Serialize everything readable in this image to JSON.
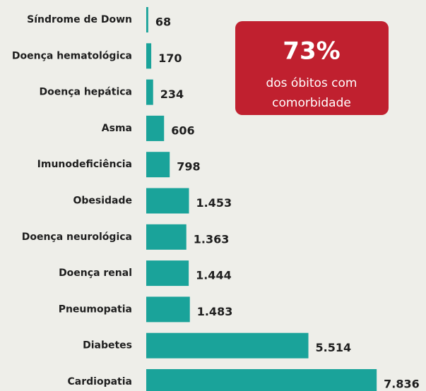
{
  "chart_data": {
    "type": "bar",
    "orientation": "horizontal",
    "categories": [
      "Síndrome de Down",
      "Doença hematológica",
      "Doença hepática",
      "Asma",
      "Imunodeficiência",
      "Obesidade",
      "Doença neurológica",
      "Doença renal",
      "Pneumopatia",
      "Diabetes",
      "Cardiopatia"
    ],
    "values": [
      68,
      170,
      234,
      606,
      798,
      1453,
      1363,
      1444,
      1483,
      5514,
      7836
    ],
    "value_labels": [
      "68",
      "170",
      "234",
      "606",
      "798",
      "1.453",
      "1.363",
      "1.444",
      "1.483",
      "5.514",
      "7.836"
    ],
    "color": "#1aa39a",
    "xlim": [
      0,
      8000
    ],
    "callout": {
      "label": "73%",
      "lines": [
        "dos óbitos com",
        "comorbidade"
      ],
      "color": "#c0202f"
    }
  }
}
